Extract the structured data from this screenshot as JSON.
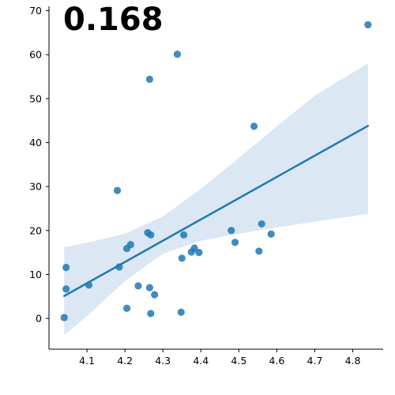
{
  "chart_data": {
    "type": "scatter",
    "title": "",
    "xlabel": "",
    "ylabel": "",
    "annotation": "0.168",
    "xlim": [
      4.0,
      4.88
    ],
    "ylim": [
      -7,
      71
    ],
    "x_ticks": [
      4.1,
      4.2,
      4.3,
      4.4,
      4.5,
      4.6,
      4.7,
      4.8
    ],
    "y_ticks": [
      0,
      10,
      20,
      30,
      40,
      50,
      60,
      70
    ],
    "grid": false,
    "colors": {
      "points": "#1f77b4",
      "line": "#1f77b4",
      "band": "#dbe7f3"
    },
    "points": [
      {
        "x": 4.04,
        "y": 0.2
      },
      {
        "x": 4.045,
        "y": 6.7
      },
      {
        "x": 4.045,
        "y": 11.6
      },
      {
        "x": 4.105,
        "y": 7.6
      },
      {
        "x": 4.18,
        "y": 29.1
      },
      {
        "x": 4.185,
        "y": 11.7
      },
      {
        "x": 4.205,
        "y": 15.9
      },
      {
        "x": 4.205,
        "y": 2.3
      },
      {
        "x": 4.215,
        "y": 16.8
      },
      {
        "x": 4.235,
        "y": 7.4
      },
      {
        "x": 4.26,
        "y": 19.5
      },
      {
        "x": 4.265,
        "y": 54.4
      },
      {
        "x": 4.268,
        "y": 19.0
      },
      {
        "x": 4.265,
        "y": 7.0
      },
      {
        "x": 4.268,
        "y": 1.1
      },
      {
        "x": 4.278,
        "y": 5.4
      },
      {
        "x": 4.338,
        "y": 60.1
      },
      {
        "x": 4.35,
        "y": 13.7
      },
      {
        "x": 4.348,
        "y": 1.4
      },
      {
        "x": 4.355,
        "y": 19.0
      },
      {
        "x": 4.375,
        "y": 15.1
      },
      {
        "x": 4.383,
        "y": 16.0
      },
      {
        "x": 4.395,
        "y": 15.0
      },
      {
        "x": 4.48,
        "y": 20.0
      },
      {
        "x": 4.49,
        "y": 17.3
      },
      {
        "x": 4.54,
        "y": 43.7
      },
      {
        "x": 4.553,
        "y": 15.3
      },
      {
        "x": 4.56,
        "y": 21.5
      },
      {
        "x": 4.585,
        "y": 19.2
      },
      {
        "x": 4.84,
        "y": 66.8
      }
    ],
    "regression": {
      "x": [
        4.04,
        4.84
      ],
      "y": [
        5.1,
        43.8
      ]
    },
    "confidence_band": {
      "x": [
        4.04,
        4.1,
        4.2,
        4.3,
        4.4,
        4.5,
        4.6,
        4.7,
        4.84
      ],
      "upper": [
        16.2,
        17.2,
        19.3,
        23.2,
        29.5,
        36.5,
        43.7,
        50.7,
        58.0
      ],
      "lower": [
        -3.8,
        0.5,
        8.5,
        14.7,
        17.7,
        19.3,
        20.7,
        22.0,
        23.8
      ]
    }
  }
}
